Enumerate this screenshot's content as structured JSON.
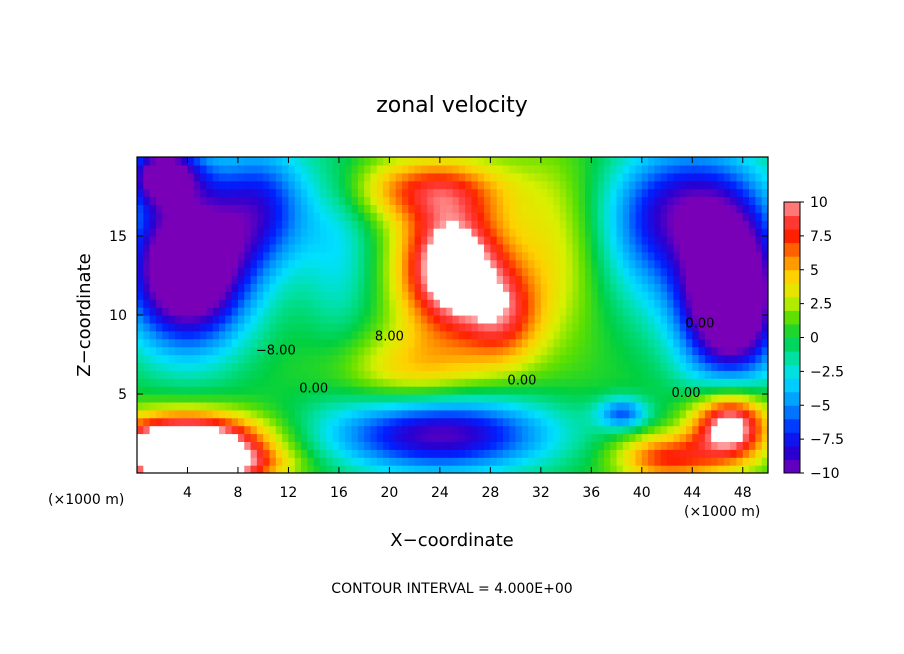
{
  "chart_data": {
    "type": "heatmap",
    "title": "zonal velocity",
    "xlabel": "X−coordinate",
    "ylabel": "Z−coordinate",
    "x_unit_label": "(×1000 m)",
    "footer": "CONTOUR INTERVAL = 4.000E+00",
    "xlim": [
      0,
      50
    ],
    "ylim": [
      0,
      20
    ],
    "x_ticks": [
      {
        "value": 4,
        "label": "4"
      },
      {
        "value": 8,
        "label": "8"
      },
      {
        "value": 12,
        "label": "12"
      },
      {
        "value": 16,
        "label": "16"
      },
      {
        "value": 20,
        "label": "20"
      },
      {
        "value": 24,
        "label": "24"
      },
      {
        "value": 28,
        "label": "28"
      },
      {
        "value": 32,
        "label": "32"
      },
      {
        "value": 36,
        "label": "36"
      },
      {
        "value": 40,
        "label": "40"
      },
      {
        "value": 44,
        "label": "44"
      },
      {
        "value": 48,
        "label": "48"
      }
    ],
    "y_ticks": [
      {
        "value": 5,
        "label": "5"
      },
      {
        "value": 10,
        "label": "10"
      },
      {
        "value": 15,
        "label": "15"
      }
    ],
    "colorbar": {
      "min": -10,
      "max": 10,
      "ticks": [
        {
          "value": 10,
          "label": "10"
        },
        {
          "value": 7.5,
          "label": "7.5"
        },
        {
          "value": 5,
          "label": "5"
        },
        {
          "value": 2.5,
          "label": "2.5"
        },
        {
          "value": 0,
          "label": "0"
        },
        {
          "value": -2.5,
          "label": "−2.5"
        },
        {
          "value": -5,
          "label": "−5"
        },
        {
          "value": -7.5,
          "label": "−7.5"
        },
        {
          "value": -10,
          "label": "−10"
        }
      ],
      "stops": [
        {
          "value": -10,
          "color": "#7a00b8"
        },
        {
          "value": -8.5,
          "color": "#2a00d0"
        },
        {
          "value": -7,
          "color": "#0020ff"
        },
        {
          "value": -5,
          "color": "#0090ff"
        },
        {
          "value": -3,
          "color": "#00e0ff"
        },
        {
          "value": -1.5,
          "color": "#00e0a0"
        },
        {
          "value": 0,
          "color": "#00d040"
        },
        {
          "value": 1.5,
          "color": "#60e000"
        },
        {
          "value": 3,
          "color": "#d8f000"
        },
        {
          "value": 4.5,
          "color": "#ffd000"
        },
        {
          "value": 6,
          "color": "#ff8000"
        },
        {
          "value": 7.5,
          "color": "#ff2000"
        },
        {
          "value": 8.8,
          "color": "#ff4040"
        },
        {
          "value": 10,
          "color": "#ffa0a0"
        }
      ],
      "overflow_color": "#ffffff"
    },
    "contour_labels": [
      {
        "x": 11,
        "z": 7.5,
        "label": "−8.00"
      },
      {
        "x": 20,
        "z": 8.4,
        "label": "8.00"
      },
      {
        "x": 14,
        "z": 5.1,
        "label": "0.00"
      },
      {
        "x": 30.5,
        "z": 5.6,
        "label": "0.00"
      },
      {
        "x": 43.5,
        "z": 4.8,
        "label": "0.00"
      },
      {
        "x": 44.6,
        "z": 9.2,
        "label": "0.00"
      }
    ],
    "field_features": [
      {
        "x": 25,
        "z": 13,
        "value": 13,
        "sx": 4,
        "sz": 4
      },
      {
        "x": 23,
        "z": 18,
        "value": 6,
        "sx": 6,
        "sz": 2
      },
      {
        "x": 29,
        "z": 10,
        "value": 6,
        "sx": 3,
        "sz": 3
      },
      {
        "x": 4,
        "z": 13,
        "value": -15,
        "sx": 5,
        "sz": 5
      },
      {
        "x": 2,
        "z": 19,
        "value": -10,
        "sx": 3,
        "sz": 2
      },
      {
        "x": 4,
        "z": 2,
        "value": 14,
        "sx": 6,
        "sz": 1.8
      },
      {
        "x": 5,
        "z": 0.5,
        "value": 10,
        "sx": 6,
        "sz": 1.2
      },
      {
        "x": 24,
        "z": 2.5,
        "value": -10,
        "sx": 9,
        "sz": 2.5
      },
      {
        "x": 47,
        "z": 11,
        "value": -16,
        "sx": 4,
        "sz": 5
      },
      {
        "x": 44,
        "z": 17,
        "value": -8,
        "sx": 6,
        "sz": 4
      },
      {
        "x": 47,
        "z": 3,
        "value": 12,
        "sx": 3,
        "sz": 2.2
      },
      {
        "x": 42,
        "z": 1,
        "value": 7,
        "sx": 4,
        "sz": 1.5
      },
      {
        "x": 10,
        "z": 17,
        "value": -7,
        "sx": 4,
        "sz": 4
      },
      {
        "x": 38.5,
        "z": 3.8,
        "value": -6,
        "sx": 2,
        "sz": 1
      },
      {
        "x": 22,
        "z": 6.5,
        "value": 4,
        "sx": 6,
        "sz": 2.5
      },
      {
        "x": 33,
        "z": 14,
        "value": 3,
        "sx": 4,
        "sz": 6
      },
      {
        "x": 40,
        "z": 14,
        "value": -3,
        "sx": 4,
        "sz": 5
      },
      {
        "x": 16,
        "z": 14,
        "value": -3,
        "sx": 3,
        "sz": 6
      }
    ]
  }
}
